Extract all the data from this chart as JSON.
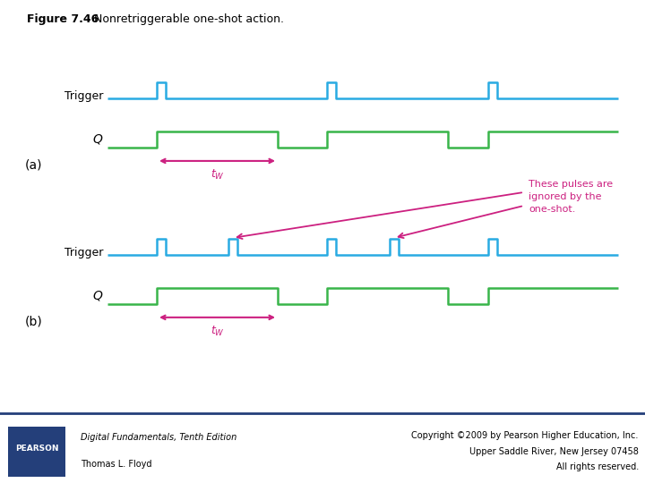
{
  "title_bold": "Figure 7.46",
  "title_normal": "  Nonretriggerable one-shot action.",
  "trigger_color": "#29ABE2",
  "q_color": "#39B54A",
  "arrow_color": "#CC2080",
  "text_color": "#CC2080",
  "bg_color": "#FFFFFF",
  "footer_bg": "#243F7A",
  "annotation": "These pulses are\nignored by the\none-shot.",
  "label_a": "(a)",
  "label_b": "(b)",
  "trigger_label": "Trigger",
  "q_label": "Q",
  "footer_italic": "Digital Fundamentals, Tenth Edition",
  "footer_normal": "Thomas L. Floyd",
  "copyright1": "Copyright ©2009 by Pearson Higher Education, Inc.",
  "copyright2": "Upper Saddle River, New Jersey 07458",
  "copyright3": "All rights reserved.",
  "pearson": "PEARSON"
}
